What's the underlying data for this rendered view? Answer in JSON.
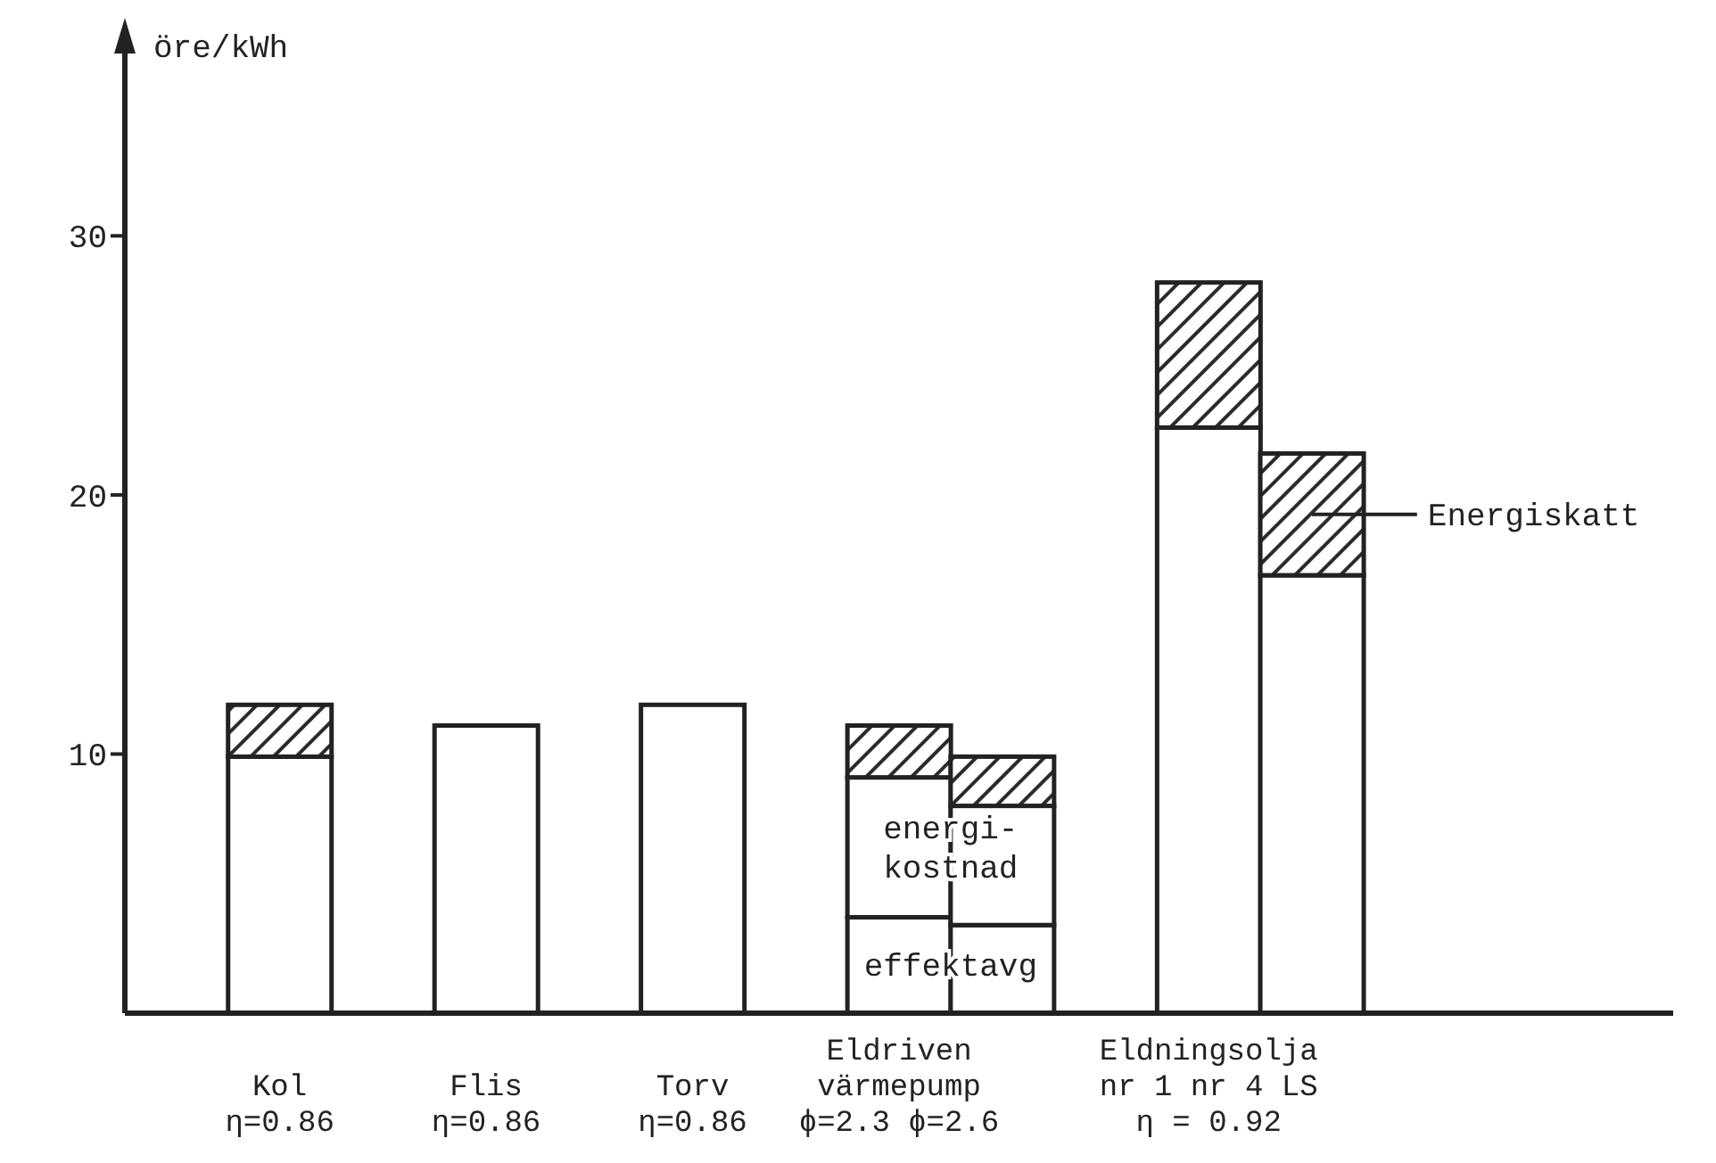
{
  "chart_data": {
    "type": "bar",
    "stacked": true,
    "ylabel": "öre/kWh",
    "categories": [
      null,
      "Kol\nη=0.86",
      null,
      "Flis\nη=0.86",
      null,
      "Torv\nη=0.86",
      null,
      "Eldriven\nvärmepump\nϕ=2.3 ϕ=2.6",
      null,
      null,
      "Eldningsolja\nnr 1 nr 4 LS\nη = 0.92",
      null,
      null,
      null,
      null
    ],
    "series": [
      {
        "color": "#ffffff",
        "values": [
          null,
          9.9,
          null,
          11.1,
          null,
          11.9,
          null,
          3.7,
          3.4,
          null,
          22.6,
          16.9,
          null,
          null,
          null
        ]
      },
      {
        "color": "#ffffff",
        "values": [
          null,
          null,
          null,
          null,
          null,
          null,
          null,
          5.4,
          4.6,
          null,
          null,
          null,
          null,
          null,
          null
        ]
      },
      {
        "name": "Energiskatt",
        "color": "#2b2b2b",
        "values": [
          null,
          2.0,
          null,
          null,
          null,
          null,
          null,
          2.0,
          1.9,
          null,
          5.6,
          4.7,
          null,
          null,
          null
        ]
      }
    ],
    "annotations": [
      "energi-\nkostnad",
      "effektavg"
    ],
    "ylim": [
      0,
      38
    ],
    "yticks": [
      10,
      20,
      30
    ],
    "grid": false,
    "legend": "right"
  }
}
